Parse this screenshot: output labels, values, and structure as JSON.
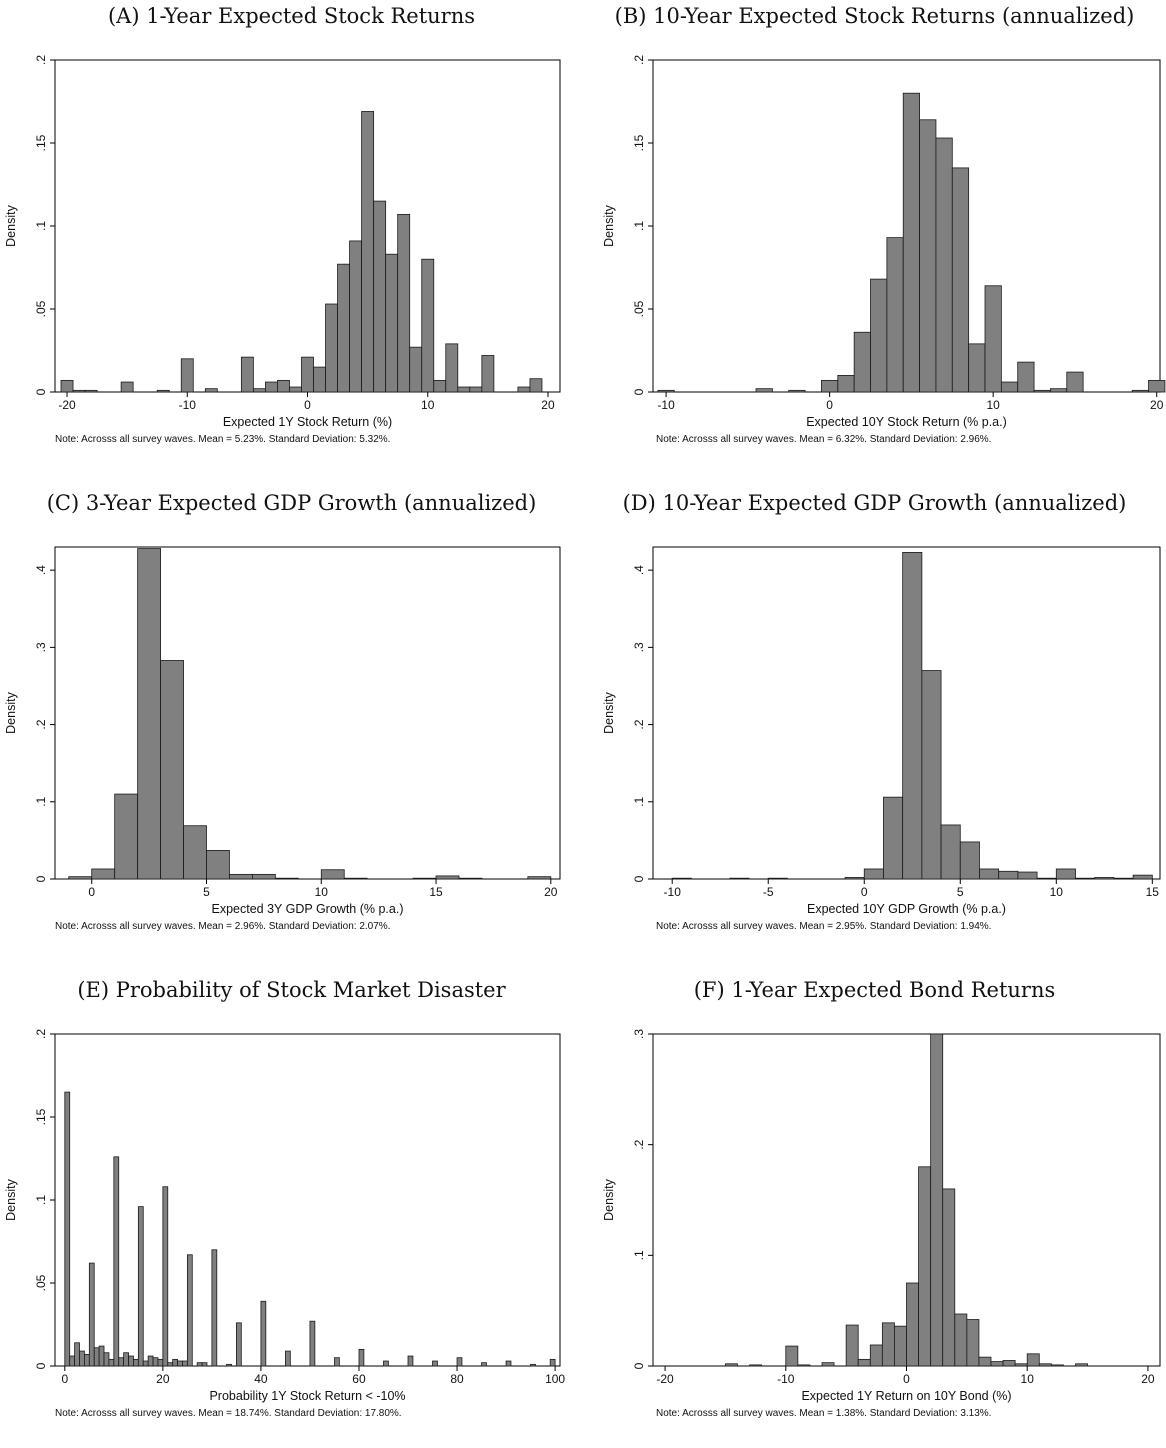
{
  "chart_data": [
    {
      "type": "bar",
      "panel_title": "(A) 1-Year Expected Stock Returns",
      "xlabel": "Expected 1Y Stock Return (%)",
      "ylabel": "Density",
      "note": "Note: Acrosss all survey waves. Mean = 5.23%. Standard Deviation: 5.32%.",
      "xlim": [
        -21,
        21
      ],
      "ylim": [
        0,
        0.2
      ],
      "xticks": [
        {
          "v": -20,
          "l": "-20"
        },
        {
          "v": -10,
          "l": "-10"
        },
        {
          "v": 0,
          "l": "0"
        },
        {
          "v": 10,
          "l": "10"
        },
        {
          "v": 20,
          "l": "20"
        }
      ],
      "yticks": [
        {
          "v": 0,
          "l": "0"
        },
        {
          "v": 0.05,
          "l": ".05"
        },
        {
          "v": 0.1,
          "l": ".1"
        },
        {
          "v": 0.15,
          "l": ".15"
        },
        {
          "v": 0.2,
          "l": ".2"
        }
      ],
      "bins": [
        {
          "x0": -20.5,
          "x1": -19.5,
          "y": 0.007
        },
        {
          "x0": -19.5,
          "x1": -18.5,
          "y": 0.001
        },
        {
          "x0": -18.5,
          "x1": -17.5,
          "y": 0.001
        },
        {
          "x0": -15.5,
          "x1": -14.5,
          "y": 0.006
        },
        {
          "x0": -12.5,
          "x1": -11.5,
          "y": 0.001
        },
        {
          "x0": -10.5,
          "x1": -9.5,
          "y": 0.02
        },
        {
          "x0": -8.5,
          "x1": -7.5,
          "y": 0.002
        },
        {
          "x0": -5.5,
          "x1": -4.5,
          "y": 0.021
        },
        {
          "x0": -4.5,
          "x1": -3.5,
          "y": 0.002
        },
        {
          "x0": -3.5,
          "x1": -2.5,
          "y": 0.006
        },
        {
          "x0": -2.5,
          "x1": -1.5,
          "y": 0.007
        },
        {
          "x0": -1.5,
          "x1": -0.5,
          "y": 0.003
        },
        {
          "x0": -0.5,
          "x1": 0.5,
          "y": 0.021
        },
        {
          "x0": 0.5,
          "x1": 1.5,
          "y": 0.015
        },
        {
          "x0": 1.5,
          "x1": 2.5,
          "y": 0.053
        },
        {
          "x0": 2.5,
          "x1": 3.5,
          "y": 0.077
        },
        {
          "x0": 3.5,
          "x1": 4.5,
          "y": 0.091
        },
        {
          "x0": 4.5,
          "x1": 5.5,
          "y": 0.169
        },
        {
          "x0": 5.5,
          "x1": 6.5,
          "y": 0.115
        },
        {
          "x0": 6.5,
          "x1": 7.5,
          "y": 0.083
        },
        {
          "x0": 7.5,
          "x1": 8.5,
          "y": 0.107
        },
        {
          "x0": 8.5,
          "x1": 9.5,
          "y": 0.027
        },
        {
          "x0": 9.5,
          "x1": 10.5,
          "y": 0.08
        },
        {
          "x0": 10.5,
          "x1": 11.5,
          "y": 0.007
        },
        {
          "x0": 11.5,
          "x1": 12.5,
          "y": 0.029
        },
        {
          "x0": 12.5,
          "x1": 13.5,
          "y": 0.003
        },
        {
          "x0": 13.5,
          "x1": 14.5,
          "y": 0.003
        },
        {
          "x0": 14.5,
          "x1": 15.5,
          "y": 0.022
        },
        {
          "x0": 17.5,
          "x1": 18.5,
          "y": 0.003
        },
        {
          "x0": 18.5,
          "x1": 19.5,
          "y": 0.008
        }
      ]
    },
    {
      "type": "bar",
      "panel_title": "(B) 10-Year Expected Stock Returns (annualized)",
      "xlabel": "Expected 10Y Stock Return  (% p.a.)",
      "ylabel": "Density",
      "note": "Note: Acrosss all survey waves. Mean = 6.32%. Standard Deviation: 2.96%.",
      "xlim": [
        -10.8,
        20.2
      ],
      "ylim": [
        0,
        0.2
      ],
      "xticks": [
        {
          "v": -10,
          "l": "-10"
        },
        {
          "v": 0,
          "l": "0"
        },
        {
          "v": 10,
          "l": "10"
        },
        {
          "v": 20,
          "l": "20"
        }
      ],
      "yticks": [
        {
          "v": 0,
          "l": "0"
        },
        {
          "v": 0.05,
          "l": ".05"
        },
        {
          "v": 0.1,
          "l": ".1"
        },
        {
          "v": 0.15,
          "l": ".15"
        },
        {
          "v": 0.2,
          "l": ".2"
        }
      ],
      "bins": [
        {
          "x0": -10.5,
          "x1": -9.5,
          "y": 0.001
        },
        {
          "x0": -4.5,
          "x1": -3.5,
          "y": 0.002
        },
        {
          "x0": -2.5,
          "x1": -1.5,
          "y": 0.001
        },
        {
          "x0": -0.5,
          "x1": 0.5,
          "y": 0.007
        },
        {
          "x0": 0.5,
          "x1": 1.5,
          "y": 0.01
        },
        {
          "x0": 1.5,
          "x1": 2.5,
          "y": 0.036
        },
        {
          "x0": 2.5,
          "x1": 3.5,
          "y": 0.068
        },
        {
          "x0": 3.5,
          "x1": 4.5,
          "y": 0.093
        },
        {
          "x0": 4.5,
          "x1": 5.5,
          "y": 0.18
        },
        {
          "x0": 5.5,
          "x1": 6.5,
          "y": 0.164
        },
        {
          "x0": 6.5,
          "x1": 7.5,
          "y": 0.153
        },
        {
          "x0": 7.5,
          "x1": 8.5,
          "y": 0.135
        },
        {
          "x0": 8.5,
          "x1": 9.5,
          "y": 0.029
        },
        {
          "x0": 9.5,
          "x1": 10.5,
          "y": 0.064
        },
        {
          "x0": 10.5,
          "x1": 11.5,
          "y": 0.006
        },
        {
          "x0": 11.5,
          "x1": 12.5,
          "y": 0.018
        },
        {
          "x0": 12.5,
          "x1": 13.5,
          "y": 0.001
        },
        {
          "x0": 13.5,
          "x1": 14.5,
          "y": 0.002
        },
        {
          "x0": 14.5,
          "x1": 15.5,
          "y": 0.012
        },
        {
          "x0": 18.5,
          "x1": 19.5,
          "y": 0.001
        },
        {
          "x0": 19.5,
          "x1": 20.5,
          "y": 0.007
        }
      ]
    },
    {
      "type": "bar",
      "panel_title": "(C) 3-Year Expected GDP Growth (annualized)",
      "xlabel": "Expected 3Y GDP Growth (% p.a.)",
      "ylabel": "Density",
      "note": "Note: Acrosss all survey waves. Mean = 2.96%. Standard Deviation: 2.07%.",
      "xlim": [
        -1.6,
        20.4
      ],
      "ylim": [
        0,
        0.43
      ],
      "xticks": [
        {
          "v": 0,
          "l": "0"
        },
        {
          "v": 5,
          "l": "5"
        },
        {
          "v": 10,
          "l": "10"
        },
        {
          "v": 15,
          "l": "15"
        },
        {
          "v": 20,
          "l": "20"
        }
      ],
      "yticks": [
        {
          "v": 0,
          "l": "0"
        },
        {
          "v": 0.1,
          "l": ".1"
        },
        {
          "v": 0.2,
          "l": ".2"
        },
        {
          "v": 0.3,
          "l": ".3"
        },
        {
          "v": 0.4,
          "l": ".4"
        }
      ],
      "bins": [
        {
          "x0": -1.0,
          "x1": 0.0,
          "y": 0.003
        },
        {
          "x0": 0.0,
          "x1": 1.0,
          "y": 0.013
        },
        {
          "x0": 1.0,
          "x1": 2.0,
          "y": 0.11
        },
        {
          "x0": 2.0,
          "x1": 3.0,
          "y": 0.428
        },
        {
          "x0": 3.0,
          "x1": 4.0,
          "y": 0.283
        },
        {
          "x0": 4.0,
          "x1": 5.0,
          "y": 0.069
        },
        {
          "x0": 5.0,
          "x1": 6.0,
          "y": 0.037
        },
        {
          "x0": 6.0,
          "x1": 7.0,
          "y": 0.006
        },
        {
          "x0": 7.0,
          "x1": 8.0,
          "y": 0.006
        },
        {
          "x0": 8.0,
          "x1": 9.0,
          "y": 0.001
        },
        {
          "x0": 10.0,
          "x1": 11.0,
          "y": 0.012
        },
        {
          "x0": 11.0,
          "x1": 12.0,
          "y": 0.001
        },
        {
          "x0": 14.0,
          "x1": 15.0,
          "y": 0.001
        },
        {
          "x0": 15.0,
          "x1": 16.0,
          "y": 0.004
        },
        {
          "x0": 16.0,
          "x1": 17.0,
          "y": 0.001
        },
        {
          "x0": 19.0,
          "x1": 20.0,
          "y": 0.003
        }
      ]
    },
    {
      "type": "bar",
      "panel_title": "(D) 10-Year Expected GDP Growth (annualized)",
      "xlabel": "Expected 10Y GDP Growth (% p.a.)",
      "ylabel": "Density",
      "note": "Note: Acrosss all survey waves. Mean = 2.95%. Standard Deviation: 1.94%.",
      "xlim": [
        -11,
        15.4
      ],
      "ylim": [
        0,
        0.43
      ],
      "xticks": [
        {
          "v": -10,
          "l": "-10"
        },
        {
          "v": -5,
          "l": "-5"
        },
        {
          "v": 0,
          "l": "0"
        },
        {
          "v": 5,
          "l": "5"
        },
        {
          "v": 10,
          "l": "10"
        },
        {
          "v": 15,
          "l": "15"
        }
      ],
      "yticks": [
        {
          "v": 0,
          "l": "0"
        },
        {
          "v": 0.1,
          "l": ".1"
        },
        {
          "v": 0.2,
          "l": ".2"
        },
        {
          "v": 0.3,
          "l": ".3"
        },
        {
          "v": 0.4,
          "l": ".4"
        }
      ],
      "bins": [
        {
          "x0": -10.0,
          "x1": -9.0,
          "y": 0.001
        },
        {
          "x0": -7.0,
          "x1": -6.0,
          "y": 0.001
        },
        {
          "x0": -5.0,
          "x1": -4.0,
          "y": 0.001
        },
        {
          "x0": -1.0,
          "x1": 0.0,
          "y": 0.002
        },
        {
          "x0": 0.0,
          "x1": 1.0,
          "y": 0.013
        },
        {
          "x0": 1.0,
          "x1": 2.0,
          "y": 0.106
        },
        {
          "x0": 2.0,
          "x1": 3.0,
          "y": 0.423
        },
        {
          "x0": 3.0,
          "x1": 4.0,
          "y": 0.27
        },
        {
          "x0": 4.0,
          "x1": 5.0,
          "y": 0.07
        },
        {
          "x0": 5.0,
          "x1": 6.0,
          "y": 0.048
        },
        {
          "x0": 6.0,
          "x1": 7.0,
          "y": 0.013
        },
        {
          "x0": 7.0,
          "x1": 8.0,
          "y": 0.01
        },
        {
          "x0": 8.0,
          "x1": 9.0,
          "y": 0.009
        },
        {
          "x0": 9.0,
          "x1": 10.0,
          "y": 0.001
        },
        {
          "x0": 10.0,
          "x1": 11.0,
          "y": 0.013
        },
        {
          "x0": 11.0,
          "x1": 12.0,
          "y": 0.001
        },
        {
          "x0": 12.0,
          "x1": 13.0,
          "y": 0.002
        },
        {
          "x0": 13.0,
          "x1": 14.0,
          "y": 0.001
        },
        {
          "x0": 14.0,
          "x1": 15.0,
          "y": 0.005
        }
      ]
    },
    {
      "type": "bar",
      "panel_title": "(E) Probability of Stock Market Disaster",
      "xlabel": "Probability 1Y Stock Return < -10%",
      "ylabel": "Density",
      "note": "Note: Acrosss all survey waves. Mean = 18.74%. Standard Deviation: 17.80%.",
      "xlim": [
        -2,
        101
      ],
      "ylim": [
        0,
        0.2
      ],
      "xticks": [
        {
          "v": 0,
          "l": "0"
        },
        {
          "v": 20,
          "l": "20"
        },
        {
          "v": 40,
          "l": "40"
        },
        {
          "v": 60,
          "l": "60"
        },
        {
          "v": 80,
          "l": "80"
        },
        {
          "v": 100,
          "l": "100"
        }
      ],
      "yticks": [
        {
          "v": 0,
          "l": "0"
        },
        {
          "v": 0.05,
          "l": ".05"
        },
        {
          "v": 0.1,
          "l": ".1"
        },
        {
          "v": 0.15,
          "l": ".15"
        },
        {
          "v": 0.2,
          "l": ".2"
        }
      ],
      "bins": [
        {
          "x0": 0,
          "x1": 1,
          "y": 0.165
        },
        {
          "x0": 1,
          "x1": 2,
          "y": 0.006
        },
        {
          "x0": 2,
          "x1": 3,
          "y": 0.014
        },
        {
          "x0": 3,
          "x1": 4,
          "y": 0.009
        },
        {
          "x0": 4,
          "x1": 5,
          "y": 0.007
        },
        {
          "x0": 5,
          "x1": 6,
          "y": 0.062
        },
        {
          "x0": 6,
          "x1": 7,
          "y": 0.011
        },
        {
          "x0": 7,
          "x1": 8,
          "y": 0.012
        },
        {
          "x0": 8,
          "x1": 9,
          "y": 0.008
        },
        {
          "x0": 9,
          "x1": 10,
          "y": 0.004
        },
        {
          "x0": 10,
          "x1": 11,
          "y": 0.126
        },
        {
          "x0": 11,
          "x1": 12,
          "y": 0.005
        },
        {
          "x0": 12,
          "x1": 13,
          "y": 0.008
        },
        {
          "x0": 13,
          "x1": 14,
          "y": 0.006
        },
        {
          "x0": 14,
          "x1": 15,
          "y": 0.004
        },
        {
          "x0": 15,
          "x1": 16,
          "y": 0.096
        },
        {
          "x0": 16,
          "x1": 17,
          "y": 0.003
        },
        {
          "x0": 17,
          "x1": 18,
          "y": 0.006
        },
        {
          "x0": 18,
          "x1": 19,
          "y": 0.005
        },
        {
          "x0": 19,
          "x1": 20,
          "y": 0.004
        },
        {
          "x0": 20,
          "x1": 21,
          "y": 0.108
        },
        {
          "x0": 21,
          "x1": 22,
          "y": 0.002
        },
        {
          "x0": 22,
          "x1": 23,
          "y": 0.004
        },
        {
          "x0": 23,
          "x1": 24,
          "y": 0.003
        },
        {
          "x0": 24,
          "x1": 25,
          "y": 0.003
        },
        {
          "x0": 25,
          "x1": 26,
          "y": 0.067
        },
        {
          "x0": 27,
          "x1": 28,
          "y": 0.002
        },
        {
          "x0": 28,
          "x1": 29,
          "y": 0.002
        },
        {
          "x0": 30,
          "x1": 31,
          "y": 0.07
        },
        {
          "x0": 33,
          "x1": 34,
          "y": 0.001
        },
        {
          "x0": 35,
          "x1": 36,
          "y": 0.026
        },
        {
          "x0": 40,
          "x1": 41,
          "y": 0.039
        },
        {
          "x0": 45,
          "x1": 46,
          "y": 0.009
        },
        {
          "x0": 50,
          "x1": 51,
          "y": 0.027
        },
        {
          "x0": 55,
          "x1": 56,
          "y": 0.005
        },
        {
          "x0": 60,
          "x1": 61,
          "y": 0.01
        },
        {
          "x0": 65,
          "x1": 66,
          "y": 0.003
        },
        {
          "x0": 70,
          "x1": 71,
          "y": 0.006
        },
        {
          "x0": 75,
          "x1": 76,
          "y": 0.003
        },
        {
          "x0": 80,
          "x1": 81,
          "y": 0.005
        },
        {
          "x0": 85,
          "x1": 86,
          "y": 0.002
        },
        {
          "x0": 90,
          "x1": 91,
          "y": 0.003
        },
        {
          "x0": 95,
          "x1": 96,
          "y": 0.001
        },
        {
          "x0": 99,
          "x1": 100,
          "y": 0.004
        }
      ]
    },
    {
      "type": "bar",
      "panel_title": "(F) 1-Year Expected Bond Returns",
      "xlabel": "Expected 1Y Return on 10Y Bond (%)",
      "ylabel": "Density",
      "note": "Note: Acrosss all survey waves. Mean = 1.38%. Standard Deviation: 3.13%.",
      "xlim": [
        -21,
        21
      ],
      "ylim": [
        0,
        0.3
      ],
      "xticks": [
        {
          "v": -20,
          "l": "-20"
        },
        {
          "v": -10,
          "l": "-10"
        },
        {
          "v": 0,
          "l": "0"
        },
        {
          "v": 10,
          "l": "10"
        },
        {
          "v": 20,
          "l": "20"
        }
      ],
      "yticks": [
        {
          "v": 0,
          "l": "0"
        },
        {
          "v": 0.1,
          "l": ".1"
        },
        {
          "v": 0.2,
          "l": ".2"
        },
        {
          "v": 0.3,
          "l": ".3"
        }
      ],
      "bins": [
        {
          "x0": -15,
          "x1": -14,
          "y": 0.002
        },
        {
          "x0": -13,
          "x1": -12,
          "y": 0.001
        },
        {
          "x0": -10,
          "x1": -9,
          "y": 0.018
        },
        {
          "x0": -9,
          "x1": -8,
          "y": 0.001
        },
        {
          "x0": -7,
          "x1": -6,
          "y": 0.003
        },
        {
          "x0": -5,
          "x1": -4,
          "y": 0.037
        },
        {
          "x0": -4,
          "x1": -3,
          "y": 0.006
        },
        {
          "x0": -3,
          "x1": -2,
          "y": 0.019
        },
        {
          "x0": -2,
          "x1": -1,
          "y": 0.039
        },
        {
          "x0": -1,
          "x1": 0,
          "y": 0.036
        },
        {
          "x0": 0,
          "x1": 1,
          "y": 0.075
        },
        {
          "x0": 1,
          "x1": 2,
          "y": 0.18
        },
        {
          "x0": 2,
          "x1": 3,
          "y": 0.3
        },
        {
          "x0": 3,
          "x1": 4,
          "y": 0.16
        },
        {
          "x0": 4,
          "x1": 5,
          "y": 0.047
        },
        {
          "x0": 5,
          "x1": 6,
          "y": 0.042
        },
        {
          "x0": 6,
          "x1": 7,
          "y": 0.008
        },
        {
          "x0": 7,
          "x1": 8,
          "y": 0.004
        },
        {
          "x0": 8,
          "x1": 9,
          "y": 0.005
        },
        {
          "x0": 9,
          "x1": 10,
          "y": 0.002
        },
        {
          "x0": 10,
          "x1": 11,
          "y": 0.011
        },
        {
          "x0": 11,
          "x1": 12,
          "y": 0.002
        },
        {
          "x0": 12,
          "x1": 13,
          "y": 0.001
        },
        {
          "x0": 14,
          "x1": 15,
          "y": 0.002
        }
      ]
    }
  ]
}
